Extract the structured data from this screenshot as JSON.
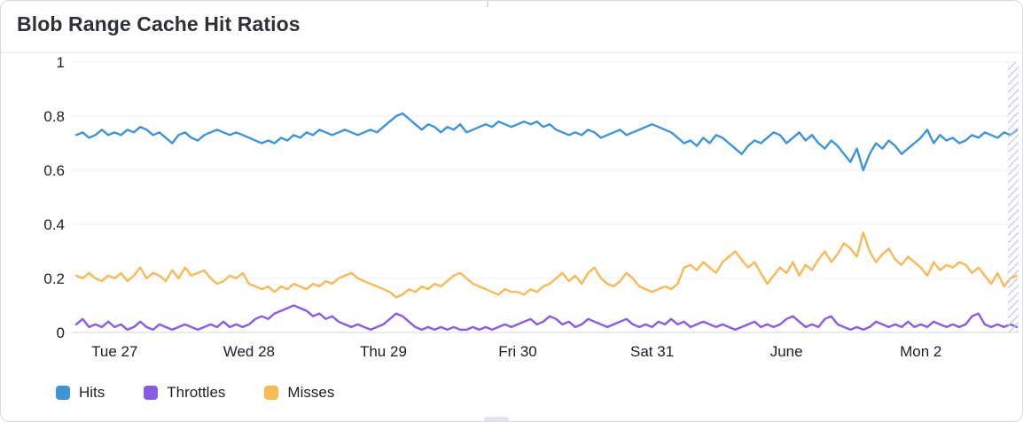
{
  "header": {
    "title": "Blob Range Cache Hit Ratios"
  },
  "colors": {
    "panel_border": "#d8dce2",
    "grid": "#edeff3",
    "axis_baseline": "#d0d4da",
    "tick_text": "#1b1f24",
    "title_text": "#2d3138",
    "hatch_stripe": "#c3c7ea",
    "hits_blue": "#3E94D8",
    "throttles_purple": "#8A5CE6",
    "misses_amber": "#F7BA55"
  },
  "chart_data": {
    "type": "line",
    "title": "Blob Range Cache Hit Ratios",
    "xlabel": "",
    "ylabel": "",
    "ylim": [
      0,
      1
    ],
    "grid": "horizontal",
    "legend_position": "bottom",
    "partial_data_hatch_right_edge": true,
    "y_ticks": [
      {
        "value": 0,
        "label": "0"
      },
      {
        "value": 0.2,
        "label": "0.2"
      },
      {
        "value": 0.4,
        "label": "0.4"
      },
      {
        "value": 0.6,
        "label": "0.6"
      },
      {
        "value": 0.8,
        "label": "0.8"
      },
      {
        "value": 1,
        "label": "1"
      }
    ],
    "x_ticks": [
      {
        "index": 6,
        "label": "Tue 27"
      },
      {
        "index": 27,
        "label": "Wed 28"
      },
      {
        "index": 48,
        "label": "Thu 29"
      },
      {
        "index": 69,
        "label": "Fri 30"
      },
      {
        "index": 90,
        "label": "Sat 31"
      },
      {
        "index": 111,
        "label": "June"
      },
      {
        "index": 132,
        "label": "Mon 2"
      }
    ],
    "series": [
      {
        "name": "Hits",
        "color": "#3E94D8",
        "values": [
          0.73,
          0.74,
          0.72,
          0.73,
          0.75,
          0.73,
          0.74,
          0.73,
          0.75,
          0.74,
          0.76,
          0.75,
          0.73,
          0.74,
          0.72,
          0.7,
          0.73,
          0.74,
          0.72,
          0.71,
          0.73,
          0.74,
          0.75,
          0.74,
          0.73,
          0.74,
          0.73,
          0.72,
          0.71,
          0.7,
          0.71,
          0.7,
          0.72,
          0.71,
          0.73,
          0.72,
          0.74,
          0.73,
          0.75,
          0.74,
          0.73,
          0.74,
          0.75,
          0.74,
          0.73,
          0.74,
          0.75,
          0.74,
          0.76,
          0.78,
          0.8,
          0.81,
          0.79,
          0.77,
          0.75,
          0.77,
          0.76,
          0.74,
          0.76,
          0.75,
          0.77,
          0.74,
          0.75,
          0.76,
          0.77,
          0.76,
          0.78,
          0.77,
          0.76,
          0.77,
          0.78,
          0.77,
          0.78,
          0.76,
          0.77,
          0.75,
          0.74,
          0.73,
          0.74,
          0.73,
          0.75,
          0.74,
          0.72,
          0.73,
          0.74,
          0.75,
          0.73,
          0.74,
          0.75,
          0.76,
          0.77,
          0.76,
          0.75,
          0.74,
          0.72,
          0.7,
          0.71,
          0.69,
          0.72,
          0.7,
          0.73,
          0.72,
          0.7,
          0.68,
          0.66,
          0.69,
          0.71,
          0.7,
          0.72,
          0.74,
          0.73,
          0.7,
          0.72,
          0.74,
          0.71,
          0.73,
          0.7,
          0.68,
          0.71,
          0.69,
          0.66,
          0.63,
          0.68,
          0.6,
          0.66,
          0.7,
          0.68,
          0.71,
          0.69,
          0.66,
          0.68,
          0.7,
          0.72,
          0.75,
          0.7,
          0.73,
          0.71,
          0.72,
          0.7,
          0.71,
          0.73,
          0.72,
          0.74,
          0.73,
          0.72,
          0.74,
          0.73,
          0.75
        ]
      },
      {
        "name": "Throttles",
        "color": "#8A5CE6",
        "values": [
          0.03,
          0.05,
          0.02,
          0.03,
          0.02,
          0.04,
          0.02,
          0.03,
          0.01,
          0.02,
          0.04,
          0.02,
          0.01,
          0.03,
          0.02,
          0.01,
          0.02,
          0.03,
          0.02,
          0.01,
          0.02,
          0.03,
          0.02,
          0.04,
          0.02,
          0.03,
          0.02,
          0.03,
          0.05,
          0.06,
          0.05,
          0.07,
          0.08,
          0.09,
          0.1,
          0.09,
          0.08,
          0.06,
          0.07,
          0.05,
          0.06,
          0.04,
          0.03,
          0.02,
          0.03,
          0.02,
          0.01,
          0.02,
          0.03,
          0.05,
          0.07,
          0.06,
          0.04,
          0.02,
          0.01,
          0.02,
          0.01,
          0.02,
          0.01,
          0.02,
          0.01,
          0.01,
          0.02,
          0.01,
          0.02,
          0.01,
          0.02,
          0.03,
          0.02,
          0.03,
          0.04,
          0.05,
          0.03,
          0.04,
          0.06,
          0.05,
          0.03,
          0.04,
          0.02,
          0.03,
          0.05,
          0.04,
          0.03,
          0.02,
          0.03,
          0.04,
          0.05,
          0.03,
          0.02,
          0.03,
          0.02,
          0.04,
          0.03,
          0.05,
          0.03,
          0.04,
          0.02,
          0.03,
          0.04,
          0.03,
          0.02,
          0.03,
          0.02,
          0.01,
          0.02,
          0.03,
          0.04,
          0.02,
          0.03,
          0.02,
          0.03,
          0.05,
          0.06,
          0.04,
          0.02,
          0.03,
          0.02,
          0.05,
          0.06,
          0.03,
          0.02,
          0.01,
          0.02,
          0.01,
          0.02,
          0.04,
          0.03,
          0.02,
          0.03,
          0.02,
          0.04,
          0.02,
          0.03,
          0.02,
          0.04,
          0.03,
          0.02,
          0.03,
          0.02,
          0.03,
          0.06,
          0.07,
          0.03,
          0.02,
          0.03,
          0.02,
          0.03,
          0.02
        ]
      },
      {
        "name": "Misses",
        "color": "#F7BA55",
        "values": [
          0.21,
          0.2,
          0.22,
          0.2,
          0.19,
          0.21,
          0.2,
          0.22,
          0.19,
          0.21,
          0.24,
          0.2,
          0.22,
          0.21,
          0.19,
          0.23,
          0.2,
          0.24,
          0.21,
          0.22,
          0.23,
          0.2,
          0.18,
          0.19,
          0.21,
          0.2,
          0.22,
          0.18,
          0.17,
          0.16,
          0.17,
          0.15,
          0.17,
          0.16,
          0.18,
          0.17,
          0.16,
          0.18,
          0.17,
          0.19,
          0.18,
          0.2,
          0.21,
          0.22,
          0.2,
          0.19,
          0.18,
          0.17,
          0.16,
          0.15,
          0.13,
          0.14,
          0.16,
          0.15,
          0.17,
          0.16,
          0.18,
          0.17,
          0.19,
          0.21,
          0.22,
          0.2,
          0.18,
          0.17,
          0.16,
          0.15,
          0.14,
          0.16,
          0.15,
          0.15,
          0.14,
          0.16,
          0.15,
          0.17,
          0.18,
          0.2,
          0.22,
          0.19,
          0.21,
          0.18,
          0.22,
          0.24,
          0.2,
          0.18,
          0.17,
          0.19,
          0.22,
          0.2,
          0.17,
          0.16,
          0.15,
          0.16,
          0.17,
          0.16,
          0.18,
          0.24,
          0.25,
          0.23,
          0.26,
          0.24,
          0.22,
          0.26,
          0.28,
          0.3,
          0.27,
          0.24,
          0.26,
          0.22,
          0.18,
          0.21,
          0.24,
          0.22,
          0.26,
          0.21,
          0.25,
          0.23,
          0.27,
          0.3,
          0.26,
          0.29,
          0.33,
          0.31,
          0.28,
          0.37,
          0.3,
          0.26,
          0.29,
          0.31,
          0.27,
          0.25,
          0.28,
          0.26,
          0.24,
          0.21,
          0.26,
          0.23,
          0.25,
          0.24,
          0.26,
          0.25,
          0.22,
          0.24,
          0.21,
          0.18,
          0.22,
          0.17,
          0.2,
          0.21
        ]
      }
    ]
  }
}
